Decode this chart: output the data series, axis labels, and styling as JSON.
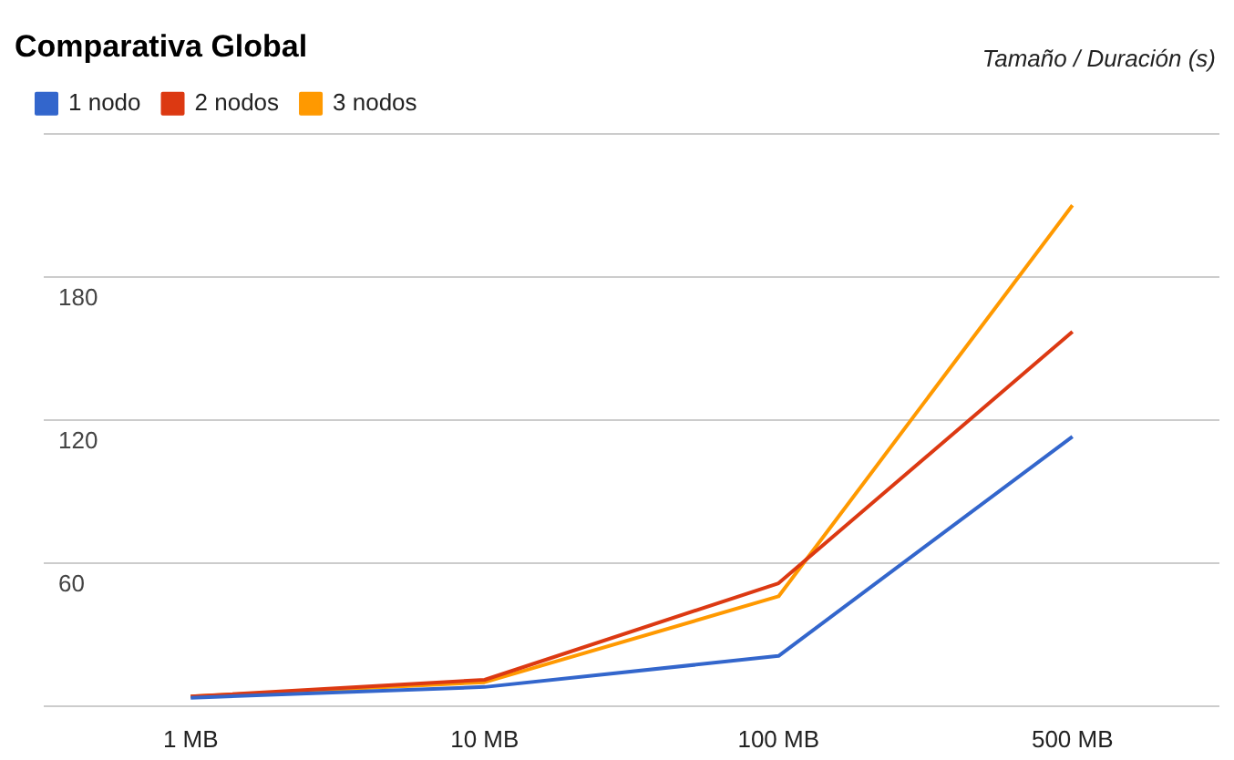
{
  "chart_data": {
    "type": "line",
    "title": "Comparativa Global",
    "ylabel": "Tamaño / Duración (s)",
    "categories": [
      "1 MB",
      "10 MB",
      "100 MB",
      "500 MB"
    ],
    "series": [
      {
        "name": "1 nodo",
        "color": "#3366cc",
        "values": [
          3.5,
          8,
          21,
          113
        ]
      },
      {
        "name": "2 nodos",
        "color": "#dc3912",
        "values": [
          4,
          11,
          51.5,
          157
        ]
      },
      {
        "name": "3 nodos",
        "color": "#ff9900",
        "values": [
          4,
          10,
          46,
          210
        ]
      }
    ],
    "ylim": [
      0,
      240
    ],
    "yticks": [
      {
        "value": 0,
        "label": null
      },
      60,
      120,
      180,
      {
        "value": 240,
        "label": null
      }
    ],
    "grid": "y",
    "legend": "top left",
    "marker": "none",
    "line_style": "solid"
  }
}
